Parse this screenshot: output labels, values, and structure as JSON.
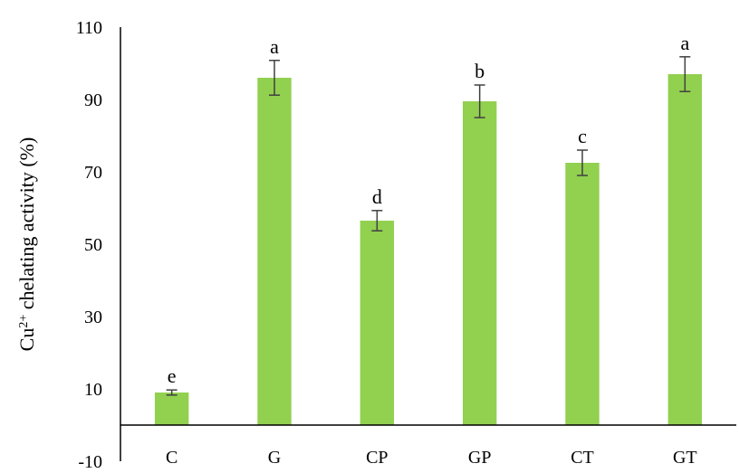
{
  "chart_data": {
    "type": "bar",
    "categories": [
      "C",
      "G",
      "CP",
      "GP",
      "CT",
      "GT"
    ],
    "values": [
      9,
      96,
      56.5,
      89.5,
      72.5,
      97
    ],
    "errors": [
      0.7,
      4.8,
      2.8,
      4.5,
      3.5,
      4.8
    ],
    "data_labels": [
      "e",
      "a",
      "d",
      "b",
      "c",
      "a"
    ],
    "ylabel": {
      "base": "Cu",
      "sup": "2+",
      "rest": " chelating activity (%)"
    },
    "xlabel": "",
    "ylim": [
      -10,
      110
    ],
    "yticks": [
      -10,
      10,
      30,
      50,
      70,
      90,
      110
    ],
    "bar_color": "#92d050",
    "grid": false,
    "legend": "none"
  }
}
